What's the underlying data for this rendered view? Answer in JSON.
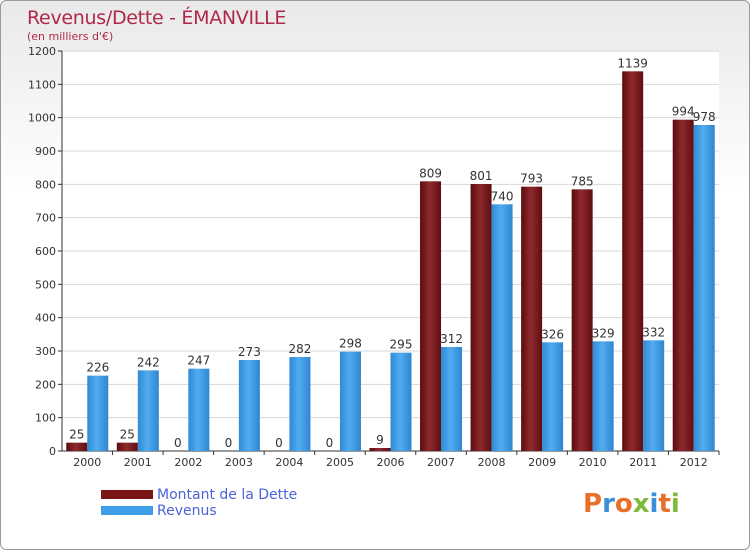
{
  "header": {
    "title": "Revenus/Dette - ÉMANVILLE",
    "subtitle": "(en milliers d'€)"
  },
  "legend": {
    "debt_label": "Montant de la Dette",
    "revenue_label": "Revenus"
  },
  "logo": {
    "text": "Proxiti",
    "colors": [
      "#e8702a",
      "#3a8fd8",
      "#e8702a",
      "#7bbd3a",
      "#3a8fd8",
      "#e8702a",
      "#7bbd3a"
    ]
  },
  "colors": {
    "debt": "#7a1518",
    "revenue": "#3f9ee8",
    "axis": "#333333",
    "grid": "#d8d8d8"
  },
  "chart_data": {
    "type": "bar",
    "title": "Revenus/Dette - ÉMANVILLE",
    "subtitle": "(en milliers d'€)",
    "categories": [
      "2000",
      "2001",
      "2002",
      "2003",
      "2004",
      "2005",
      "2006",
      "2007",
      "2008",
      "2009",
      "2010",
      "2011",
      "2012"
    ],
    "series": [
      {
        "name": "Montant de la Dette",
        "values": [
          25,
          25,
          0,
          0,
          0,
          0,
          9,
          809,
          801,
          793,
          785,
          1139,
          994
        ]
      },
      {
        "name": "Revenus",
        "values": [
          226,
          242,
          247,
          273,
          282,
          298,
          295,
          312,
          740,
          326,
          329,
          332,
          978
        ]
      }
    ],
    "ylim": [
      0,
      1200
    ],
    "yticks": [
      0,
      100,
      200,
      300,
      400,
      500,
      600,
      700,
      800,
      900,
      1000,
      1100,
      1200
    ],
    "grid": true,
    "legend_position": "bottom-left"
  }
}
